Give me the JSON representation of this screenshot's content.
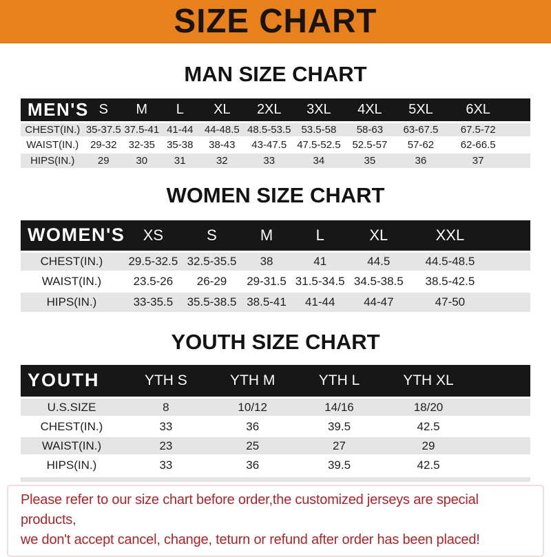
{
  "banner": {
    "title": "SIZE CHART"
  },
  "colors": {
    "banner_bg": "#E8811C",
    "table_header_bg": "#171717",
    "row_stripe": "#E5E5E5",
    "disclaimer_text": "#A8262B",
    "heading_text": "#131313"
  },
  "sections": [
    {
      "id": "men",
      "heading": "MAN SIZE CHART",
      "table": {
        "corner_label": "MEN'S",
        "size_headers": [
          "S",
          "M",
          "L",
          "XL",
          "2XL",
          "3XL",
          "4XL",
          "5XL",
          "6XL"
        ],
        "rows": [
          {
            "label": "CHEST(IN.)",
            "values": [
              "35-37.5",
              "37.5-41",
              "41-44",
              "44-48.5",
              "48.5-53.5",
              "53.5-58",
              "58-63",
              "63-67.5",
              "67.5-72"
            ]
          },
          {
            "label": "WAIST(IN.)",
            "values": [
              "29-32",
              "32-35",
              "35-38",
              "38-43",
              "43-47.5",
              "47.5-52.5",
              "52.5-57",
              "57-62",
              "62-66.5"
            ]
          },
          {
            "label": "HIPS(IN.)",
            "values": [
              "29",
              "30",
              "31",
              "32",
              "33",
              "34",
              "35",
              "36",
              "37"
            ]
          }
        ]
      }
    },
    {
      "id": "women",
      "heading": "WOMEN SIZE CHART",
      "table": {
        "corner_label": "WOMEN'S",
        "size_headers": [
          "XS",
          "S",
          "M",
          "L",
          "XL",
          "XXL"
        ],
        "rows": [
          {
            "label": "CHEST(IN.)",
            "values": [
              "29.5-32.5",
              "32.5-35.5",
              "38",
              "41",
              "44.5",
              "44.5-48.5"
            ]
          },
          {
            "label": "WAIST(IN.)",
            "values": [
              "23.5-26",
              "26-29",
              "29-31.5",
              "31.5-34.5",
              "34.5-38.5",
              "38.5-42.5"
            ]
          },
          {
            "label": "HIPS(IN.)",
            "values": [
              "33-35.5",
              "35.5-38.5",
              "38.5-41",
              "41-44",
              "44-47",
              "47-50"
            ]
          }
        ]
      }
    },
    {
      "id": "youth",
      "heading": "YOUTH SIZE CHART",
      "table": {
        "corner_label": "YOUTH",
        "size_headers": [
          "YTH S",
          "YTH M",
          "YTH L",
          "YTH XL"
        ],
        "rows": [
          {
            "label": "U.S.SIZE",
            "values": [
              "8",
              "10/12",
              "14/16",
              "18/20"
            ]
          },
          {
            "label": "CHEST(IN.)",
            "values": [
              "33",
              "36",
              "39.5",
              "42.5"
            ]
          },
          {
            "label": "WAIST(IN.)",
            "values": [
              "23",
              "25",
              "27",
              "29"
            ]
          },
          {
            "label": "HIPS(IN.)",
            "values": [
              "33",
              "36",
              "39.5",
              "42.5"
            ]
          }
        ]
      }
    }
  ],
  "disclaimer": {
    "line1": "Please refer to our size chart before order,the customized jerseys are special products,",
    "line2": "we don't accept cancel, change, teturn or refund after order has been placed!"
  }
}
